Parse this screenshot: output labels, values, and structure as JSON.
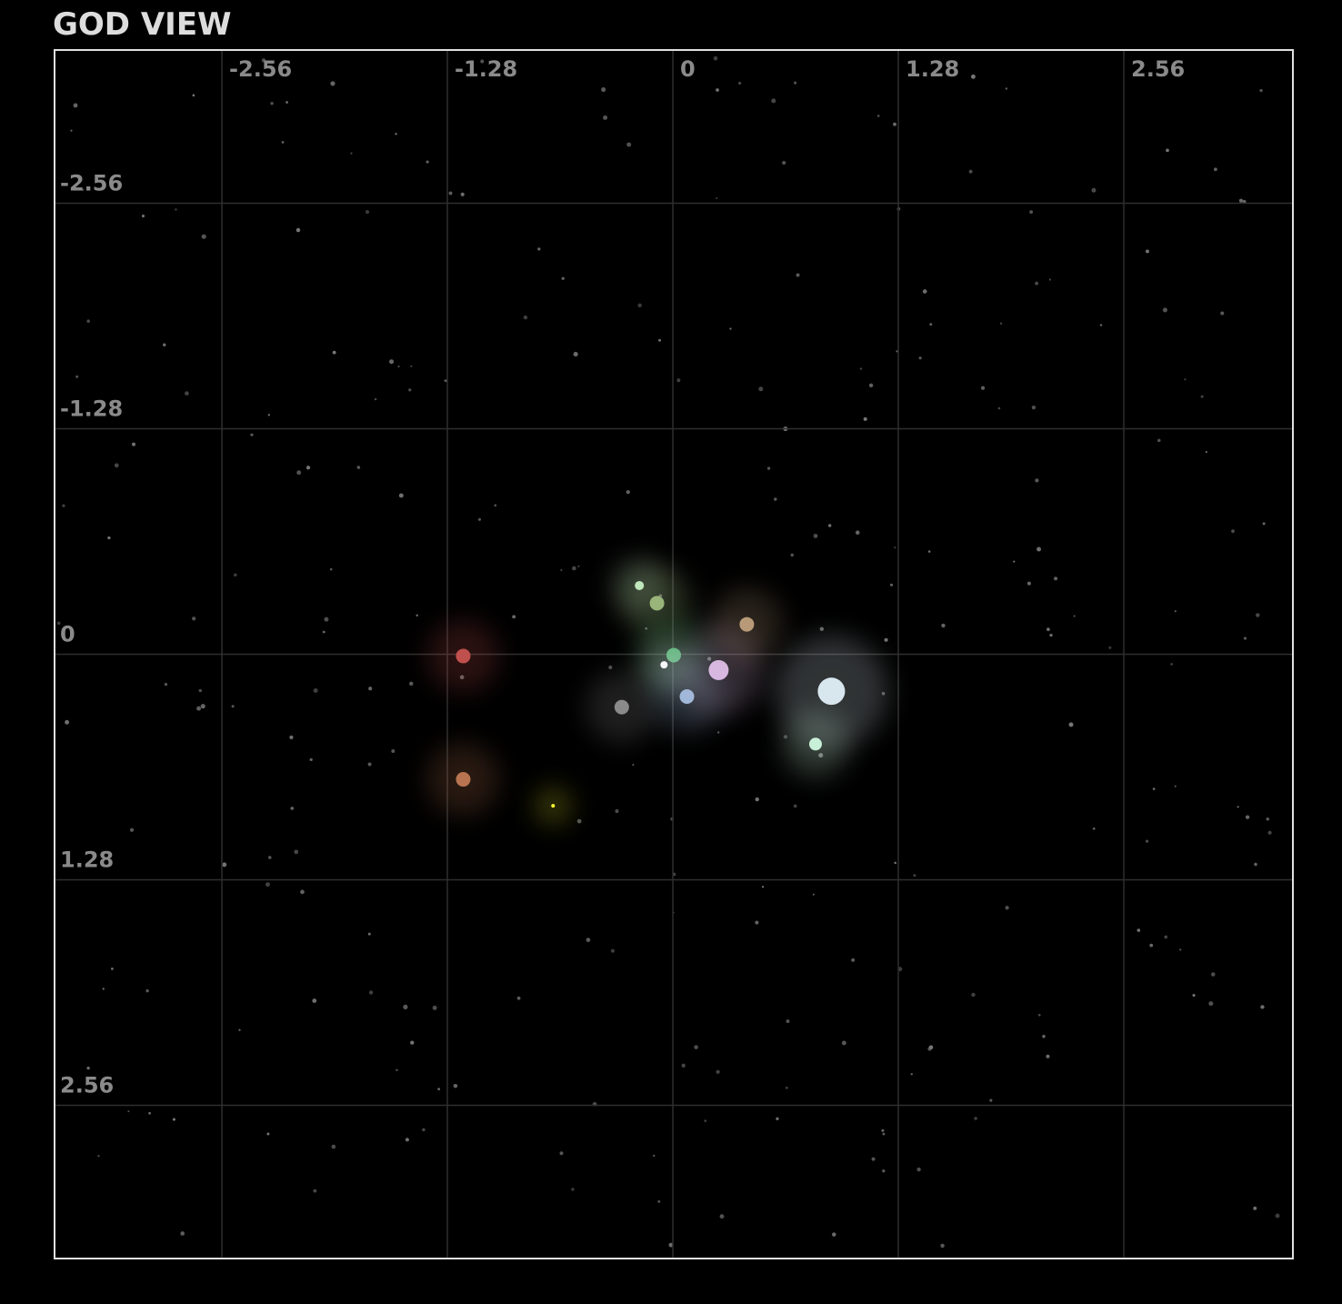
{
  "chart_data": {
    "type": "scatter",
    "title": "GOD VIEW",
    "x": [
      -1.19,
      -1.19,
      -0.68,
      -0.29,
      -0.19,
      -0.09,
      0.005,
      -0.05,
      0.08,
      0.26,
      0.42,
      0.9,
      0.81
    ],
    "y": [
      0.01,
      0.71,
      0.86,
      0.3,
      -0.39,
      -0.29,
      0.005,
      0.06,
      0.24,
      0.09,
      -0.17,
      0.21,
      0.51
    ],
    "sizes": [
      8,
      8,
      2,
      8,
      5,
      8,
      8,
      4,
      8,
      11,
      8,
      15,
      7
    ],
    "colors": [
      "#c0504d",
      "#b87350",
      "#ffff33",
      "#8a8a8a",
      "#c8f0c8",
      "#9bb57a",
      "#4caf6a",
      "#ffffff",
      "#9ab8d8",
      "#d8b8e0",
      "#b89a78",
      "#d8e6ee",
      "#c8f0d8"
    ],
    "xlim": [
      -3.51,
      3.52
    ],
    "ylim": [
      -3.43,
      3.43
    ],
    "y_inverted": true,
    "xticks": [
      -2.56,
      -1.28,
      0,
      1.28,
      2.56
    ],
    "yticks": [
      -2.56,
      -1.28,
      0,
      1.28,
      2.56
    ],
    "grid": true
  }
}
